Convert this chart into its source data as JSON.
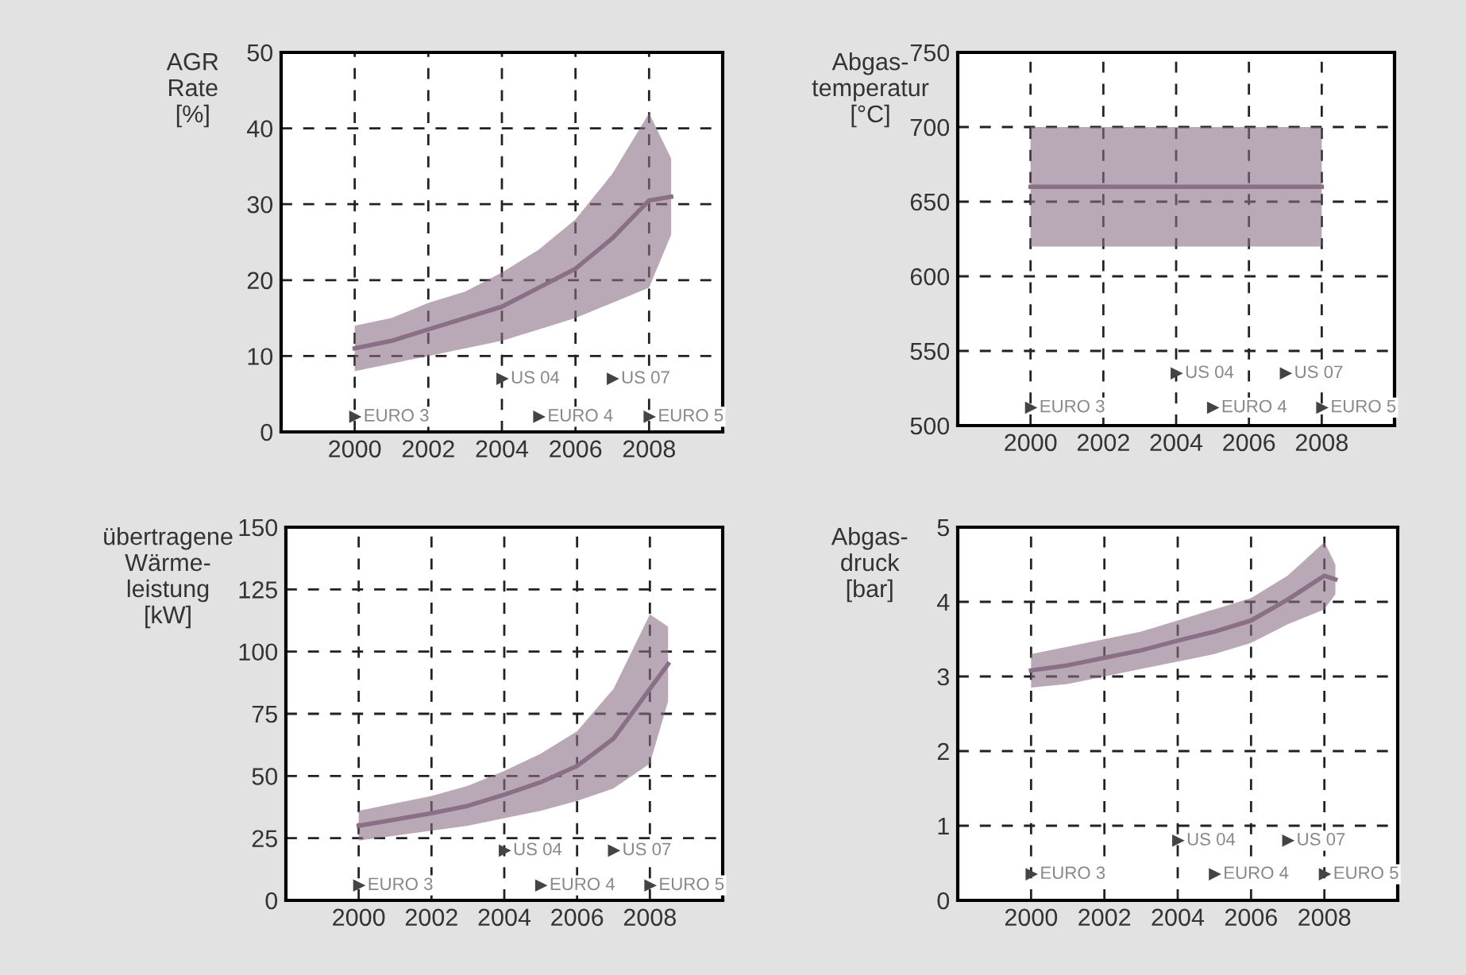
{
  "chart_data": [
    {
      "type": "line",
      "ylabel": "AGR\nRate\n[%]",
      "xlim": [
        1998,
        2010
      ],
      "xticks": [
        2000,
        2002,
        2004,
        2006,
        2008
      ],
      "ylim": [
        0,
        50
      ],
      "yticks": [
        0,
        10,
        20,
        30,
        40,
        50
      ],
      "grid": true,
      "series": [
        {
          "color": "#8a6f86",
          "x": [
            2000,
            2001,
            2002,
            2003,
            2004,
            2005,
            2006,
            2007,
            2008,
            2008.6
          ],
          "values": [
            11,
            12,
            13.5,
            15,
            16.5,
            19,
            21.5,
            25.5,
            30.5,
            31
          ],
          "lower": [
            8,
            9,
            10,
            11,
            12,
            13.5,
            15,
            17,
            19,
            26
          ],
          "upper": [
            14,
            15,
            17,
            18.5,
            21,
            24,
            28,
            34,
            42,
            36
          ]
        }
      ],
      "annotations": [
        {
          "text": "EURO 3",
          "x": 2000,
          "y": 2
        },
        {
          "text": "US 04",
          "x": 2004,
          "y": 7
        },
        {
          "text": "US 07",
          "x": 2007,
          "y": 7
        },
        {
          "text": "EURO 4",
          "x": 2005,
          "y": 2
        },
        {
          "text": "EURO 5",
          "x": 2008,
          "y": 2
        }
      ]
    },
    {
      "type": "line",
      "ylabel": "Abgas-\ntemperatur\n[°C]",
      "xlim": [
        1998,
        2010
      ],
      "xticks": [
        2000,
        2002,
        2004,
        2006,
        2008
      ],
      "ylim": [
        500,
        750
      ],
      "yticks": [
        500,
        550,
        600,
        650,
        700,
        750
      ],
      "grid": true,
      "series": [
        {
          "color": "#8a6f86",
          "x": [
            2000,
            2008
          ],
          "values": [
            660,
            660
          ],
          "lower": [
            620,
            620
          ],
          "upper": [
            700,
            700
          ]
        }
      ],
      "annotations": [
        {
          "text": "EURO 3",
          "x": 2000,
          "y": 512
        },
        {
          "text": "US 04",
          "x": 2004,
          "y": 535
        },
        {
          "text": "US 07",
          "x": 2007,
          "y": 535
        },
        {
          "text": "EURO 4",
          "x": 2005,
          "y": 512
        },
        {
          "text": "EURO 5",
          "x": 2008,
          "y": 512
        }
      ]
    },
    {
      "type": "line",
      "ylabel": "übertragene\nWärme-\nleistung\n[kW]",
      "xlim": [
        1998,
        2010
      ],
      "xticks": [
        2000,
        2002,
        2004,
        2006,
        2008
      ],
      "ylim": [
        0,
        150
      ],
      "yticks": [
        0,
        25,
        50,
        75,
        100,
        125,
        150
      ],
      "grid": true,
      "series": [
        {
          "color": "#8a6f86",
          "x": [
            2000,
            2001,
            2002,
            2003,
            2004,
            2005,
            2006,
            2007,
            2008,
            2008.5
          ],
          "values": [
            30,
            32.5,
            35,
            38,
            42.5,
            47.5,
            54,
            65,
            85,
            95
          ],
          "lower": [
            24,
            26,
            28,
            30,
            33,
            36,
            40,
            45,
            55,
            80
          ],
          "upper": [
            36,
            39,
            42,
            46,
            52,
            59,
            68,
            85,
            115,
            110
          ]
        }
      ],
      "annotations": [
        {
          "text": "EURO 3",
          "x": 2000,
          "y": 6
        },
        {
          "text": "US 04",
          "x": 2004,
          "y": 20
        },
        {
          "text": "US 07",
          "x": 2007,
          "y": 20
        },
        {
          "text": "EURO 4",
          "x": 2005,
          "y": 6
        },
        {
          "text": "EURO 5",
          "x": 2008,
          "y": 6
        }
      ]
    },
    {
      "type": "line",
      "ylabel": "Abgas-\ndruck\n[bar]",
      "xlim": [
        1998,
        2010
      ],
      "xticks": [
        2000,
        2002,
        2004,
        2006,
        2008
      ],
      "ylim": [
        0,
        5
      ],
      "yticks": [
        0,
        1,
        2,
        3,
        4,
        5
      ],
      "grid": true,
      "series": [
        {
          "color": "#8a6f86",
          "x": [
            2000,
            2001,
            2002,
            2003,
            2004,
            2005,
            2006,
            2007,
            2008,
            2008.3
          ],
          "values": [
            3.08,
            3.15,
            3.25,
            3.35,
            3.48,
            3.6,
            3.75,
            4.03,
            4.35,
            4.3
          ],
          "lower": [
            2.85,
            2.9,
            3.0,
            3.1,
            3.2,
            3.3,
            3.45,
            3.7,
            3.9,
            4.1
          ],
          "upper": [
            3.3,
            3.4,
            3.5,
            3.6,
            3.75,
            3.9,
            4.05,
            4.35,
            4.8,
            4.5
          ]
        }
      ],
      "annotations": [
        {
          "text": "EURO 3",
          "x": 2000,
          "y": 0.35
        },
        {
          "text": "US 04",
          "x": 2004,
          "y": 0.8
        },
        {
          "text": "US 07",
          "x": 2007,
          "y": 0.8
        },
        {
          "text": "EURO 4",
          "x": 2005,
          "y": 0.35
        },
        {
          "text": "EURO 5",
          "x": 2008,
          "y": 0.35
        }
      ]
    }
  ]
}
